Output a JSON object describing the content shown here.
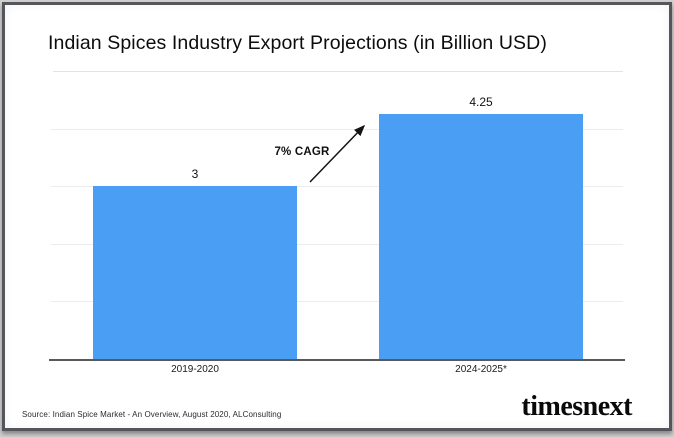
{
  "chart_data": {
    "type": "bar",
    "title": "Indian Spices Industry Export Projections (in Billion USD)",
    "categories": [
      "2019-2020",
      "2024-2025*"
    ],
    "values": [
      3,
      4.25
    ],
    "value_labels": [
      "3",
      "4.25"
    ],
    "xlabel": "",
    "ylabel": "",
    "ylim": [
      0,
      5
    ],
    "grid": true,
    "gridline_values": [
      1,
      2,
      3,
      4
    ],
    "legend": false,
    "bar_color": "#4a9ef4",
    "axis_color": "#58595b",
    "gridline_color": "#ececec",
    "annotation": {
      "text": "7% CAGR",
      "type": "arrow-up-right"
    }
  },
  "footer": {
    "source": "Source: Indian Spice Market - An Overview, August 2020, ALConsulting",
    "brand": "timesnext"
  }
}
